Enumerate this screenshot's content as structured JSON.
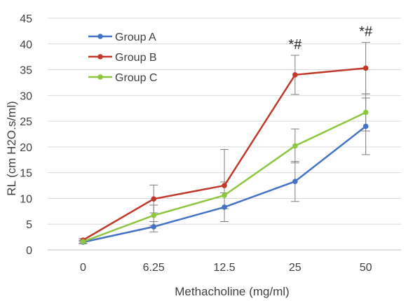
{
  "chart_data": {
    "type": "line",
    "title": "",
    "xlabel": "Methacholine (mg/ml)",
    "ylabel": "RL (cm H2O.s/ml)",
    "categories": [
      "0",
      "6.25",
      "12.5",
      "25",
      "50"
    ],
    "ylim": [
      0,
      45
    ],
    "yticks": [
      "0",
      "5",
      "10",
      "15",
      "20",
      "25",
      "30",
      "35",
      "40",
      "45"
    ],
    "grid": "horizontal",
    "legend_position": "top-left",
    "series": [
      {
        "name": "Group A",
        "color": "#4472C4",
        "values": [
          1.5,
          4.5,
          8.3,
          13.3,
          24.0
        ],
        "error": [
          0.3,
          1.0,
          2.8,
          3.9,
          5.5
        ]
      },
      {
        "name": "Group B",
        "color": "#C0392B",
        "values": [
          1.9,
          9.9,
          12.5,
          34.0,
          35.3
        ],
        "error": [
          0.3,
          2.7,
          7.0,
          3.8,
          5.0
        ]
      },
      {
        "name": "Group C",
        "color": "#8DC63F",
        "values": [
          1.6,
          6.7,
          10.6,
          20.2,
          26.7
        ],
        "error": [
          0.3,
          2.0,
          2.6,
          3.3,
          3.6
        ]
      }
    ],
    "annotations": [
      {
        "category": "25",
        "text": "*#"
      },
      {
        "category": "50",
        "text": "*#"
      }
    ]
  }
}
